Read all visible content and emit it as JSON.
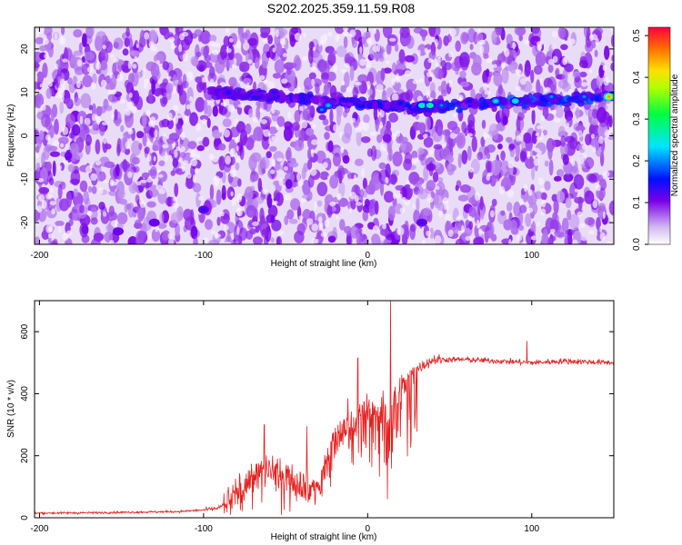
{
  "title": "S202.2025.359.11.59.R08",
  "chart_data": [
    {
      "type": "heatmap",
      "xlabel": "Height of straight line (km)",
      "ylabel": "Frequency (Hz)",
      "xlim": [
        -203,
        150
      ],
      "ylim": [
        -25,
        25
      ],
      "x_ticks": [
        -200,
        -100,
        0,
        100
      ],
      "y_ticks": [
        -20,
        -10,
        0,
        10,
        20
      ],
      "colorbar": {
        "label": "Normalized spectral amplitude",
        "range": [
          0.0,
          0.52
        ],
        "ticks": [
          0.0,
          0.1,
          0.2,
          0.3,
          0.4,
          0.5
        ],
        "tick_labels": [
          "0.0",
          "0.1",
          "0.2",
          "0.3",
          "0.4",
          "0.5"
        ]
      },
      "background_level": 0.05,
      "band": {
        "x_start": -95,
        "x_end": 150,
        "frequency_start": 10,
        "frequency_mid": 6.5,
        "frequency_end": 9,
        "peak_level": 0.4
      },
      "hotspots": [
        {
          "x": -85,
          "y": 10,
          "value": 0.15
        },
        {
          "x": -57,
          "y": 10,
          "value": 0.14
        },
        {
          "x": -28,
          "y": 6,
          "value": 0.2
        },
        {
          "x": -24,
          "y": 7,
          "value": 0.22
        },
        {
          "x": 20,
          "y": 7.5,
          "value": 0.16
        },
        {
          "x": 33,
          "y": 7,
          "value": 0.28
        },
        {
          "x": 38,
          "y": 7,
          "value": 0.3
        },
        {
          "x": 45,
          "y": 7,
          "value": 0.2
        },
        {
          "x": 62,
          "y": 8,
          "value": 0.15
        },
        {
          "x": 78,
          "y": 8,
          "value": 0.24
        },
        {
          "x": 90,
          "y": 8,
          "value": 0.26
        },
        {
          "x": 112,
          "y": 9,
          "value": 0.2
        },
        {
          "x": 132,
          "y": 9,
          "value": 0.2
        },
        {
          "x": 147,
          "y": 9,
          "value": 0.45
        },
        {
          "x": -100,
          "y": -17,
          "value": 0.14
        },
        {
          "x": 33,
          "y": -20,
          "value": 0.13
        },
        {
          "x": -130,
          "y": -20,
          "value": 0.12
        },
        {
          "x": -152,
          "y": -22,
          "value": 0.12
        }
      ]
    },
    {
      "type": "line",
      "xlabel": "Height of straight line (km)",
      "ylabel": "SNR (10 * v/v)",
      "xlim": [
        -203,
        150
      ],
      "ylim": [
        0,
        700
      ],
      "x_ticks": [
        -200,
        -100,
        0,
        100
      ],
      "y_ticks": [
        0,
        200,
        400,
        600
      ],
      "series": [
        {
          "color": "#e62020",
          "x": [
            -203,
            -170,
            -140,
            -115,
            -100,
            -92,
            -88,
            -82,
            -75,
            -70,
            -65,
            -60,
            -55,
            -50,
            -45,
            -40,
            -35,
            -30,
            -25,
            -20,
            -15,
            -10,
            -5,
            0,
            5,
            8,
            10,
            13,
            16,
            18,
            20,
            25,
            30,
            40,
            60,
            80,
            100,
            120,
            150
          ],
          "y": [
            15,
            16,
            18,
            20,
            25,
            30,
            40,
            70,
            110,
            140,
            160,
            170,
            150,
            140,
            120,
            110,
            100,
            110,
            200,
            260,
            290,
            300,
            330,
            350,
            330,
            340,
            360,
            330,
            400,
            380,
            410,
            450,
            480,
            510,
            510,
            505,
            500,
            505,
            500
          ]
        }
      ],
      "spikes": [
        {
          "x": -63,
          "y": 300
        },
        {
          "x": -37,
          "y": 295
        },
        {
          "x": -12,
          "y": 385
        },
        {
          "x": -6,
          "y": 515
        },
        {
          "x": 14,
          "y": 700
        },
        {
          "x": 12,
          "y": 60
        },
        {
          "x": 97,
          "y": 570
        }
      ]
    }
  ]
}
